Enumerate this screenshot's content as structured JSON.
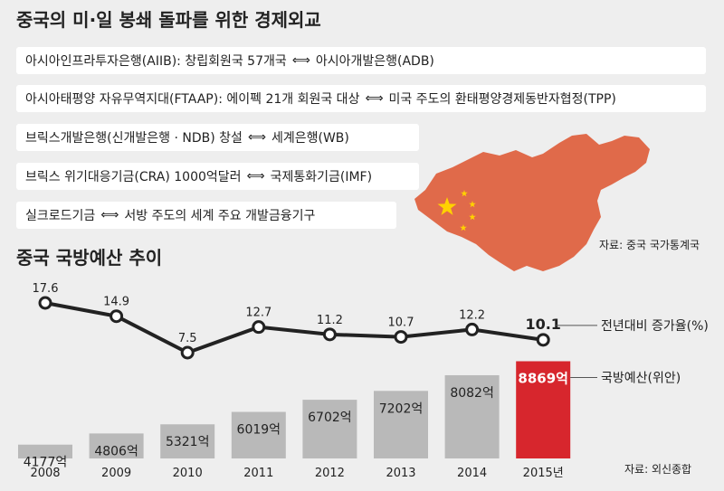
{
  "top": {
    "title": "중국의 미·일 봉쇄 돌파를 위한 경제외교",
    "rows": [
      {
        "left": "아시아인프라투자은행(AIIB): 창립회원국 57개국",
        "right": "아시아개발은행(ADB)"
      },
      {
        "left": "아시아태평양 자유무역지대(FTAAP): 에이펙 21개 회원국 대상",
        "right": "미국 주도의 환태평양경제동반자협정(TPP)"
      },
      {
        "left": "브릭스개발은행(신개발은행 · NDB) 창설",
        "right": "세계은행(WB)"
      },
      {
        "left": "브릭스 위기대응기금(CRA) 1000억달러",
        "right": "국제통화기금(IMF)"
      },
      {
        "left": "실크로드기금",
        "right": "서방 주도의 세계 주요 개발금융기구"
      }
    ],
    "arrow_glyph": "⟺",
    "source": "자료: 중국 국가통계국"
  },
  "chart_title": "중국 국방예산 추이",
  "chart_source": "자료: 외신종합",
  "colors": {
    "bar": "#b9b9b9",
    "bar_highlight": "#d7262d",
    "map": "#e06a4a",
    "line": "#222222"
  },
  "chart_data": {
    "type": "bar",
    "categories": [
      "2008",
      "2009",
      "2010",
      "2011",
      "2012",
      "2013",
      "2014",
      "2015년"
    ],
    "series": [
      {
        "name": "국방예산(위안)",
        "values": [
          4177,
          4806,
          5321,
          6019,
          6702,
          7202,
          8082,
          8869
        ],
        "labels": [
          "4177억",
          "4806억",
          "5321억",
          "6019억",
          "6702억",
          "7202억",
          "8082억",
          "8869억"
        ],
        "highlight_index": 7
      },
      {
        "name": "전년대비 증가율(%)",
        "type": "line",
        "values": [
          17.6,
          14.9,
          7.5,
          12.7,
          11.2,
          10.7,
          12.2,
          10.1
        ],
        "labels": [
          "17.6",
          "14.9",
          "7.5",
          "12.7",
          "11.2",
          "10.7",
          "12.2",
          "10.1"
        ]
      }
    ]
  }
}
